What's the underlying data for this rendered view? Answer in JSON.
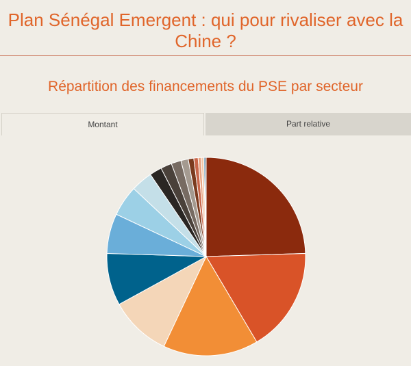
{
  "page": {
    "title": "Plan Sénégal Emergent : qui pour rivaliser avec la Chine ?"
  },
  "tabs": [
    {
      "label": "Montant",
      "active": true
    },
    {
      "label": "Part relative",
      "active": false
    }
  ],
  "chart_data": {
    "type": "pie",
    "title": "Répartition  des  financements du PSE  par secteur",
    "slices": [
      {
        "value": 24.5,
        "color": "#8b2a0d"
      },
      {
        "value": 17.0,
        "color": "#d95328"
      },
      {
        "value": 15.5,
        "color": "#f28e36"
      },
      {
        "value": 10.0,
        "color": "#f4d6b8"
      },
      {
        "value": 8.5,
        "color": "#00628c"
      },
      {
        "value": 6.5,
        "color": "#6aaed9"
      },
      {
        "value": 5.0,
        "color": "#9cd0e6"
      },
      {
        "value": 3.5,
        "color": "#c4dfe8"
      },
      {
        "value": 2.0,
        "color": "#2a2623"
      },
      {
        "value": 1.8,
        "color": "#4a413a"
      },
      {
        "value": 1.6,
        "color": "#776b62"
      },
      {
        "value": 1.2,
        "color": "#a49a90"
      },
      {
        "value": 0.9,
        "color": "#7a3a1e"
      },
      {
        "value": 0.7,
        "color": "#c8664a"
      },
      {
        "value": 0.5,
        "color": "#e8a482"
      },
      {
        "value": 0.4,
        "color": "#f2c8a8"
      },
      {
        "value": 0.2,
        "color": "#4a8ab0"
      },
      {
        "value": 0.2,
        "color": "#1a3040"
      }
    ],
    "legend": "none"
  }
}
